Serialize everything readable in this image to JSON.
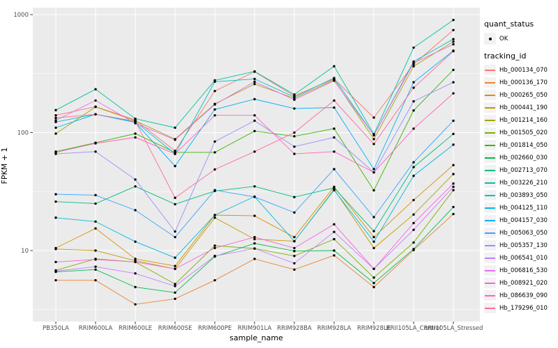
{
  "figure": {
    "background": "#FFFFFF",
    "panel_background": "#EBEBEB",
    "grid_color": "#FFFFFF",
    "point_color": "#000000",
    "axis_text_color": "#4D4D4D",
    "tick_color": "#333333",
    "legend_key_background": "#F2F2F2"
  },
  "axes": {
    "y_tick_labels": [
      "1000",
      "100",
      "10"
    ],
    "x_tick_labels": [
      "PB350LA",
      "RRIM600LA",
      "RRIM600LE",
      "RRIM600SE",
      "RRIM600PE",
      "RRIM901LA",
      "RRIM928BA",
      "RRIM928LA",
      "RRIM928LE",
      "RRII105LA_Control",
      "RRII105LA_Stressed"
    ]
  },
  "legend": {
    "quant_status_title": "quant_status",
    "quant_status_value": "OK",
    "tracking_title": "tracking_id"
  },
  "chart_data": {
    "type": "line",
    "title": "",
    "xlabel": "sample_name",
    "ylabel": "FPKM + 1",
    "y_scale": "log10",
    "ylim": [
      2.5,
      1160
    ],
    "y_major_ticks": [
      10,
      100,
      1000
    ],
    "y_minor_ticks": [
      3.1623,
      31.623,
      316.23
    ],
    "grid": true,
    "legend_position": "right",
    "point_marker": "black dot (quant_status OK)",
    "x_categories": [
      "PB350LA",
      "RRIM600LA",
      "RRIM600LE",
      "RRIM600SE",
      "RRIM600PE",
      "RRIM901LA",
      "RRIM928BA",
      "RRIM928LA",
      "RRIM928LE",
      "RRII105LA_Control",
      "RRII105LA_Stressed"
    ],
    "series": [
      {
        "name": "Hb_000134_070",
        "color": "#F8766D",
        "values": [
          140,
          166,
          128,
          70,
          225,
          328,
          205,
          285,
          134,
          380,
          740
        ]
      },
      {
        "name": "Hb_000136_170",
        "color": "#EA8331",
        "values": [
          5.6,
          5.6,
          3.5,
          3.9,
          5.6,
          8.5,
          6.9,
          9.1,
          4.9,
          10.1,
          20.4
        ]
      },
      {
        "name": "Hb_000265_050",
        "color": "#D89000",
        "values": [
          10.5,
          15.4,
          8.5,
          7.4,
          20,
          19.7,
          13,
          34.7,
          13,
          26.8,
          53
        ]
      },
      {
        "name": "Hb_000441_190",
        "color": "#C09B00",
        "values": [
          10.3,
          10,
          8.2,
          7,
          19,
          12.5,
          12,
          33,
          10.5,
          20.2,
          44.5
        ]
      },
      {
        "name": "Hb_001214_160",
        "color": "#A3A500",
        "values": [
          98,
          165,
          126,
          88,
          175,
          258,
          195,
          280,
          88,
          365,
          590
        ]
      },
      {
        "name": "Hb_001505_020",
        "color": "#7CAE00",
        "values": [
          6.8,
          8.5,
          8,
          5.2,
          11,
          10.4,
          9,
          12.5,
          5.9,
          11.7,
          32.5
        ]
      },
      {
        "name": "Hb_001814_050",
        "color": "#39B600",
        "values": [
          69,
          82,
          98,
          68,
          68,
          103,
          93,
          108,
          32.4,
          154,
          340
        ]
      },
      {
        "name": "Hb_002660_030",
        "color": "#00BB4E",
        "values": [
          6.6,
          6.9,
          4.9,
          4.4,
          8.9,
          11.5,
          9.9,
          10,
          5.3,
          10.3,
          23.4
        ]
      },
      {
        "name": "Hb_002713_070",
        "color": "#00BF7D",
        "values": [
          26,
          25,
          35,
          24.7,
          32,
          35,
          28.4,
          34,
          14.6,
          51,
          97.5
        ]
      },
      {
        "name": "Hb_003226_210",
        "color": "#00C1A3",
        "values": [
          155,
          233,
          131,
          110,
          277,
          330,
          210,
          365,
          97,
          525,
          900
        ]
      },
      {
        "name": "Hb_003893_050",
        "color": "#00BFC4",
        "values": [
          123,
          143,
          124,
          66,
          270,
          285,
          200,
          290,
          95,
          400,
          620
        ]
      },
      {
        "name": "Hb_004125_110",
        "color": "#00BAE0",
        "values": [
          19,
          17.6,
          11.9,
          8.7,
          20,
          28.7,
          12,
          32.5,
          11.9,
          43,
          79
        ]
      },
      {
        "name": "Hb_004157_030",
        "color": "#00B0F6",
        "values": [
          110,
          143,
          122,
          52,
          157,
          192,
          160,
          163,
          49,
          267,
          495
        ]
      },
      {
        "name": "Hb_005063_050",
        "color": "#35A2FF",
        "values": [
          30,
          29.5,
          22,
          13,
          32.5,
          28.5,
          21,
          49,
          19.2,
          56,
          126
        ]
      },
      {
        "name": "Hb_005357_130",
        "color": "#9590FF",
        "values": [
          66,
          69,
          40,
          14.5,
          84,
          126,
          76,
          91,
          46,
          184,
          267
        ]
      },
      {
        "name": "Hb_006541_010",
        "color": "#C77CFF",
        "values": [
          6.7,
          7.3,
          6.4,
          5,
          9,
          10.4,
          7.8,
          14.4,
          7,
          15,
          34.7
        ]
      },
      {
        "name": "Hb_006816_530",
        "color": "#E76BF3",
        "values": [
          127,
          187,
          120,
          87,
          173,
          270,
          190,
          275,
          95,
          390,
          560
        ]
      },
      {
        "name": "Hb_008921_020",
        "color": "#FA62DB",
        "values": [
          8,
          8.4,
          8,
          7,
          10.5,
          13,
          10.5,
          16.7,
          7,
          17.1,
          37
        ]
      },
      {
        "name": "Hb_086639_090",
        "color": "#FF62BC",
        "values": [
          68,
          81,
          91,
          66,
          140,
          140,
          66,
          69,
          46,
          108,
          215
        ]
      },
      {
        "name": "Hb_179296_010",
        "color": "#FF6A98",
        "values": [
          133,
          143,
          125,
          28,
          48.7,
          69,
          100,
          187,
          80,
          240,
          490
        ]
      }
    ]
  }
}
